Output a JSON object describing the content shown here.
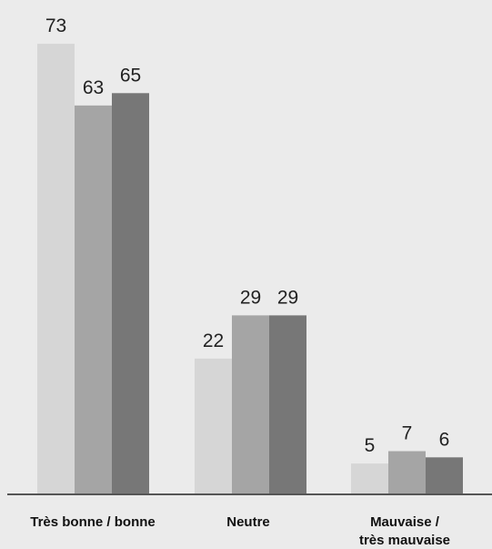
{
  "chart_data": {
    "type": "bar",
    "categories": [
      "Très bonne / bonne",
      "Neutre",
      "Mauvaise /\ntrès mauvaise"
    ],
    "series": [
      {
        "values": [
          73,
          22,
          5
        ],
        "color": "#d6d6d6"
      },
      {
        "values": [
          63,
          29,
          7
        ],
        "color": "#a5a5a5"
      },
      {
        "values": [
          65,
          29,
          6
        ],
        "color": "#777777"
      }
    ],
    "title": "",
    "xlabel": "",
    "ylabel": "",
    "ylim": [
      0,
      80
    ],
    "grid": false,
    "legend": "none"
  },
  "colors": {
    "background": "#ebebeb",
    "axis": "#555555"
  }
}
